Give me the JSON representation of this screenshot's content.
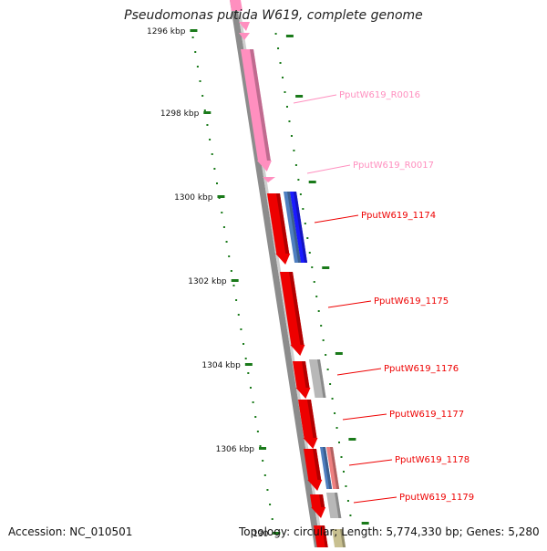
{
  "title": "Pseudomonas putida W619, complete genome",
  "accession": "Accession: NC_010501",
  "topology": "Topology: circular; Length: 5,774,330 bp; Genes: 5,280",
  "colors": {
    "rna": "#ff8fbf",
    "gene": "#ee0000",
    "blue": "#1a1aff",
    "steel": "#4f7fc0",
    "gray": "#b8b8b8",
    "salmon": "#ee8080",
    "olive": "#c8c090",
    "ruler": "#1a7a1a"
  },
  "ticks": [
    {
      "label": "1296 kbp"
    },
    {
      "label": "1298 kbp"
    },
    {
      "label": "1300 kbp"
    },
    {
      "label": "1302 kbp"
    },
    {
      "label": "1304 kbp"
    },
    {
      "label": "1306 kbp"
    },
    {
      "label": "130"
    }
  ],
  "genes": [
    {
      "id": "rna16",
      "label": "PputW619_R0016",
      "kind": "rna"
    },
    {
      "id": "rna17",
      "label": "PputW619_R0017",
      "kind": "rna"
    },
    {
      "id": "g1174",
      "label": "PputW619_1174",
      "kind": "gene"
    },
    {
      "id": "g1175",
      "label": "PputW619_1175",
      "kind": "gene"
    },
    {
      "id": "g1176",
      "label": "PputW619_1176",
      "kind": "gene"
    },
    {
      "id": "g1177",
      "label": "PputW619_1177",
      "kind": "gene"
    },
    {
      "id": "g1178",
      "label": "PputW619_1178",
      "kind": "gene"
    },
    {
      "id": "g1179",
      "label": "PputW619_1179",
      "kind": "gene"
    }
  ]
}
